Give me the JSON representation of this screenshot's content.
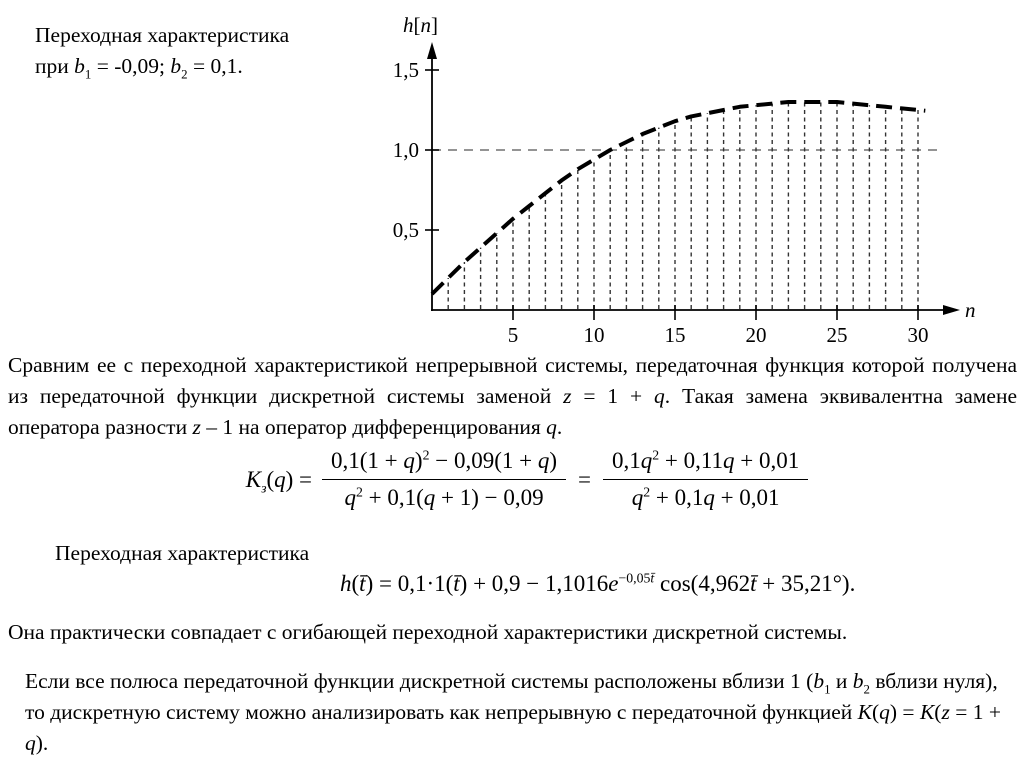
{
  "slide": {
    "background": "#ffffff",
    "text_color": "#000000"
  },
  "header": {
    "line1": "Переходная характеристика",
    "line2": [
      {
        "t": "при "
      },
      {
        "t": "b",
        "i": 1
      },
      {
        "t": "1",
        "sub": 1
      },
      {
        "t": " = -0,09; "
      },
      {
        "t": "b",
        "i": 1
      },
      {
        "t": "2",
        "sub": 1
      },
      {
        "t": " = 0,1."
      }
    ]
  },
  "chart_data": {
    "type": "line",
    "subtype": "dashed stems with dashed envelope (discrete step response)",
    "title": "",
    "ylabel": "h[n]",
    "xlabel": "n",
    "ylabel_parts": [
      {
        "t": "h",
        "i": 1
      },
      {
        "t": "["
      },
      {
        "t": "n",
        "i": 1
      },
      {
        "t": "]"
      }
    ],
    "xlabel_parts": [
      {
        "t": "n",
        "i": 1
      }
    ],
    "x": [
      0,
      1,
      2,
      3,
      4,
      5,
      6,
      7,
      8,
      9,
      10,
      11,
      12,
      13,
      14,
      15,
      16,
      17,
      18,
      19,
      20,
      21,
      22,
      23,
      24,
      25,
      26,
      27,
      28,
      29,
      30
    ],
    "values": [
      0.1,
      0.2,
      0.3,
      0.39,
      0.48,
      0.57,
      0.65,
      0.73,
      0.81,
      0.88,
      0.94,
      1.0,
      1.05,
      1.1,
      1.14,
      1.18,
      1.21,
      1.23,
      1.25,
      1.27,
      1.28,
      1.29,
      1.3,
      1.3,
      1.3,
      1.3,
      1.29,
      1.28,
      1.27,
      1.26,
      1.25
    ],
    "x_ticks": [
      {
        "v": 5,
        "label": "5"
      },
      {
        "v": 10,
        "label": "10"
      },
      {
        "v": 15,
        "label": "15"
      },
      {
        "v": 20,
        "label": "20"
      },
      {
        "v": 25,
        "label": "25"
      },
      {
        "v": 30,
        "label": "30"
      }
    ],
    "y_ticks": [
      {
        "v": 0.5,
        "label": "0,5"
      },
      {
        "v": 1,
        "label": "1,0"
      },
      {
        "v": 1.5,
        "label": "1,5"
      }
    ],
    "reference_line_y": 1.0,
    "xlim": [
      0,
      32.5
    ],
    "ylim": [
      0,
      1.75
    ],
    "grid": false,
    "legend": "none"
  },
  "paragraph1": [
    {
      "t": "Сравним ее с переходной характеристикой непрерывной системы, передаточная функция которой получена из передаточной функции дискретной системы заменой "
    },
    {
      "t": "z",
      "i": 1
    },
    {
      "t": " = 1 + "
    },
    {
      "t": "q",
      "i": 1
    },
    {
      "t": ". Такая замена эквивалентна замене оператора разности "
    },
    {
      "t": "z",
      "i": 1
    },
    {
      "t": " – 1 на оператор дифференцирования "
    },
    {
      "t": "q",
      "i": 1
    },
    {
      "t": "."
    }
  ],
  "formula_K": {
    "lhs": [
      {
        "t": "K",
        "i": 1
      },
      {
        "t": "з",
        "sub": 1,
        "i": 1
      },
      {
        "t": "(",
        "i": 0
      },
      {
        "t": "q",
        "i": 1
      },
      {
        "t": ") = "
      }
    ],
    "frac1": {
      "num": [
        {
          "t": "0,1(1 + "
        },
        {
          "t": "q",
          "i": 1
        },
        {
          "t": ")"
        },
        {
          "t": "2",
          "sup": 1
        },
        {
          "t": " − 0,09(1 + "
        },
        {
          "t": "q",
          "i": 1
        },
        {
          "t": ")"
        }
      ],
      "den": [
        {
          "t": "q",
          "i": 1
        },
        {
          "t": "2",
          "sup": 1
        },
        {
          "t": " + 0,1("
        },
        {
          "t": "q",
          "i": 1
        },
        {
          "t": " + 1) − 0,09"
        }
      ]
    },
    "equals": [
      {
        "t": "="
      }
    ],
    "frac2": {
      "num": [
        {
          "t": "0,1"
        },
        {
          "t": "q",
          "i": 1
        },
        {
          "t": "2",
          "sup": 1
        },
        {
          "t": " + 0,11"
        },
        {
          "t": "q",
          "i": 1
        },
        {
          "t": " + 0,01"
        }
      ],
      "den": [
        {
          "t": "q",
          "i": 1
        },
        {
          "t": "2",
          "sup": 1
        },
        {
          "t": " + 0,1"
        },
        {
          "t": "q",
          "i": 1
        },
        {
          "t": " + 0,01"
        }
      ]
    }
  },
  "caption": "Переходная характеристика",
  "formula_h": [
    {
      "t": "h",
      "i": 1
    },
    {
      "t": "("
    },
    {
      "t": "t̄",
      "i": 1
    },
    {
      "t": ") = 0,1·1("
    },
    {
      "t": "t̄",
      "i": 1
    },
    {
      "t": ") + 0,9 − 1,1016"
    },
    {
      "t": "e",
      "i": 1
    },
    {
      "t": "−0,05",
      "sup": 1
    },
    {
      "t": "t̄",
      "sup": 1,
      "i": 1
    },
    {
      "t": " cos(4,962"
    },
    {
      "t": "t̄",
      "i": 1
    },
    {
      "t": " + 35,21°)."
    }
  ],
  "paragraph2": "Она практически совпадает с огибающей переходной характеристики дискретной системы.",
  "paragraph3": [
    {
      "t": "Если все полюса передаточной функции дискретной системы расположены вблизи 1 ("
    },
    {
      "t": "b",
      "i": 1
    },
    {
      "t": "1",
      "sub": 1
    },
    {
      "t": " и "
    },
    {
      "t": "b",
      "i": 1
    },
    {
      "t": "2",
      "sub": 1
    },
    {
      "t": " вблизи нуля), то дискретную систему можно анализировать как непрерывную с передаточной функцией "
    },
    {
      "t": "K",
      "i": 1
    },
    {
      "t": "("
    },
    {
      "t": "q",
      "i": 1
    },
    {
      "t": ") = "
    },
    {
      "t": "K",
      "i": 1
    },
    {
      "t": "("
    },
    {
      "t": "z",
      "i": 1
    },
    {
      "t": " = 1 + "
    },
    {
      "t": "q",
      "i": 1
    },
    {
      "t": ")."
    }
  ]
}
